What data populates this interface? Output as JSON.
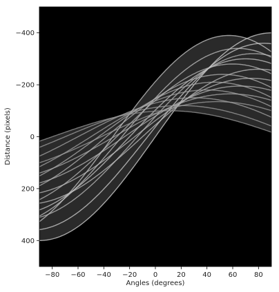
{
  "chart_data": {
    "type": "heatmap",
    "description_kind": "hough-transform accumulator",
    "xlabel": "Angles (degrees)",
    "ylabel": "Distance (pixels)",
    "xlim": [
      -90,
      90
    ],
    "ylim": [
      500,
      -500
    ],
    "x_ticks": [
      -80,
      -60,
      -40,
      -20,
      0,
      20,
      40,
      60,
      80
    ],
    "y_ticks": [
      -400,
      -200,
      0,
      200,
      400
    ],
    "background_color": "#000000",
    "colormap": "gray",
    "grid": false,
    "sinusoids": [
      {
        "r": 400,
        "phase": 90,
        "intensity": 0.9
      },
      {
        "r": 390,
        "phase": 57,
        "intensity": 0.8
      },
      {
        "r": 360,
        "phase": 84,
        "intensity": 0.85
      },
      {
        "r": 340,
        "phase": 64,
        "intensity": 0.75
      },
      {
        "r": 320,
        "phase": 76,
        "intensity": 0.7
      },
      {
        "r": 300,
        "phase": 70,
        "intensity": 0.8
      },
      {
        "r": 280,
        "phase": 60,
        "intensity": 0.7
      },
      {
        "r": 260,
        "phase": 80,
        "intensity": 0.75
      },
      {
        "r": 240,
        "phase": 52,
        "intensity": 0.65
      },
      {
        "r": 225,
        "phase": 74,
        "intensity": 0.7
      },
      {
        "r": 210,
        "phase": 46,
        "intensity": 0.6
      },
      {
        "r": 195,
        "phase": 66,
        "intensity": 0.65
      },
      {
        "r": 180,
        "phase": 40,
        "intensity": 0.55
      },
      {
        "r": 165,
        "phase": 58,
        "intensity": 0.6
      },
      {
        "r": 150,
        "phase": 30,
        "intensity": 0.55
      },
      {
        "r": 135,
        "phase": 48,
        "intensity": 0.5
      },
      {
        "r": 120,
        "phase": 20,
        "intensity": 0.5
      },
      {
        "r": 100,
        "phase": 10,
        "intensity": 0.45
      }
    ]
  }
}
